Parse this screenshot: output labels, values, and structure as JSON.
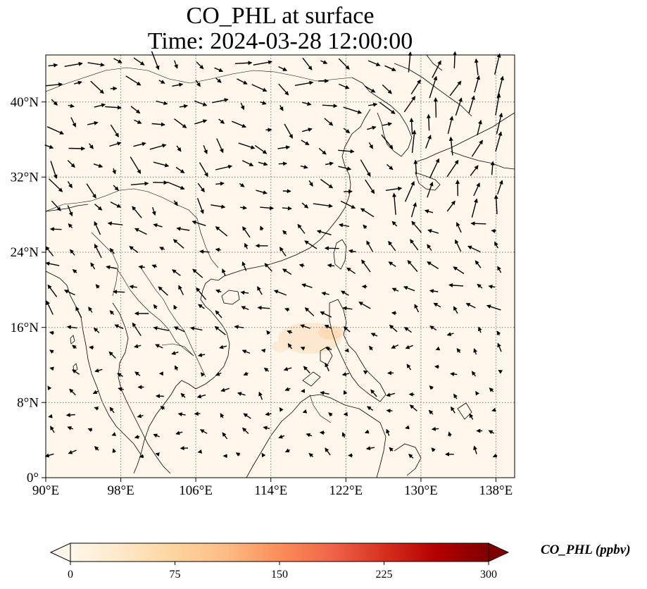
{
  "title": {
    "line1": "CO_PHL at surface",
    "line2": "Time: 2024-03-28 12:00:00"
  },
  "map": {
    "lon_range": [
      90,
      140
    ],
    "lat_range": [
      0,
      45
    ],
    "x_ticks": [
      "90°E",
      "98°E",
      "106°E",
      "114°E",
      "122°E",
      "130°E",
      "138°E"
    ],
    "y_ticks": [
      "0°",
      "8°N",
      "16°N",
      "24°N",
      "32°N",
      "40°N"
    ],
    "background_color": "#fff7ec",
    "plume_color": "#fde3c4",
    "gridlines": "dotted",
    "overlay": "wind vectors (black arrows)"
  },
  "colorbar": {
    "label": "CO_PHL (ppbv)",
    "ticks": [
      "0",
      "75",
      "150",
      "225",
      "300"
    ],
    "min": 0,
    "max": 300,
    "extend": "both",
    "colormap": [
      "#fff7ec",
      "#fee8c8",
      "#fdd49e",
      "#fdbb84",
      "#fc8d59",
      "#ef6548",
      "#d7301f",
      "#b30000",
      "#7f0000"
    ]
  }
}
